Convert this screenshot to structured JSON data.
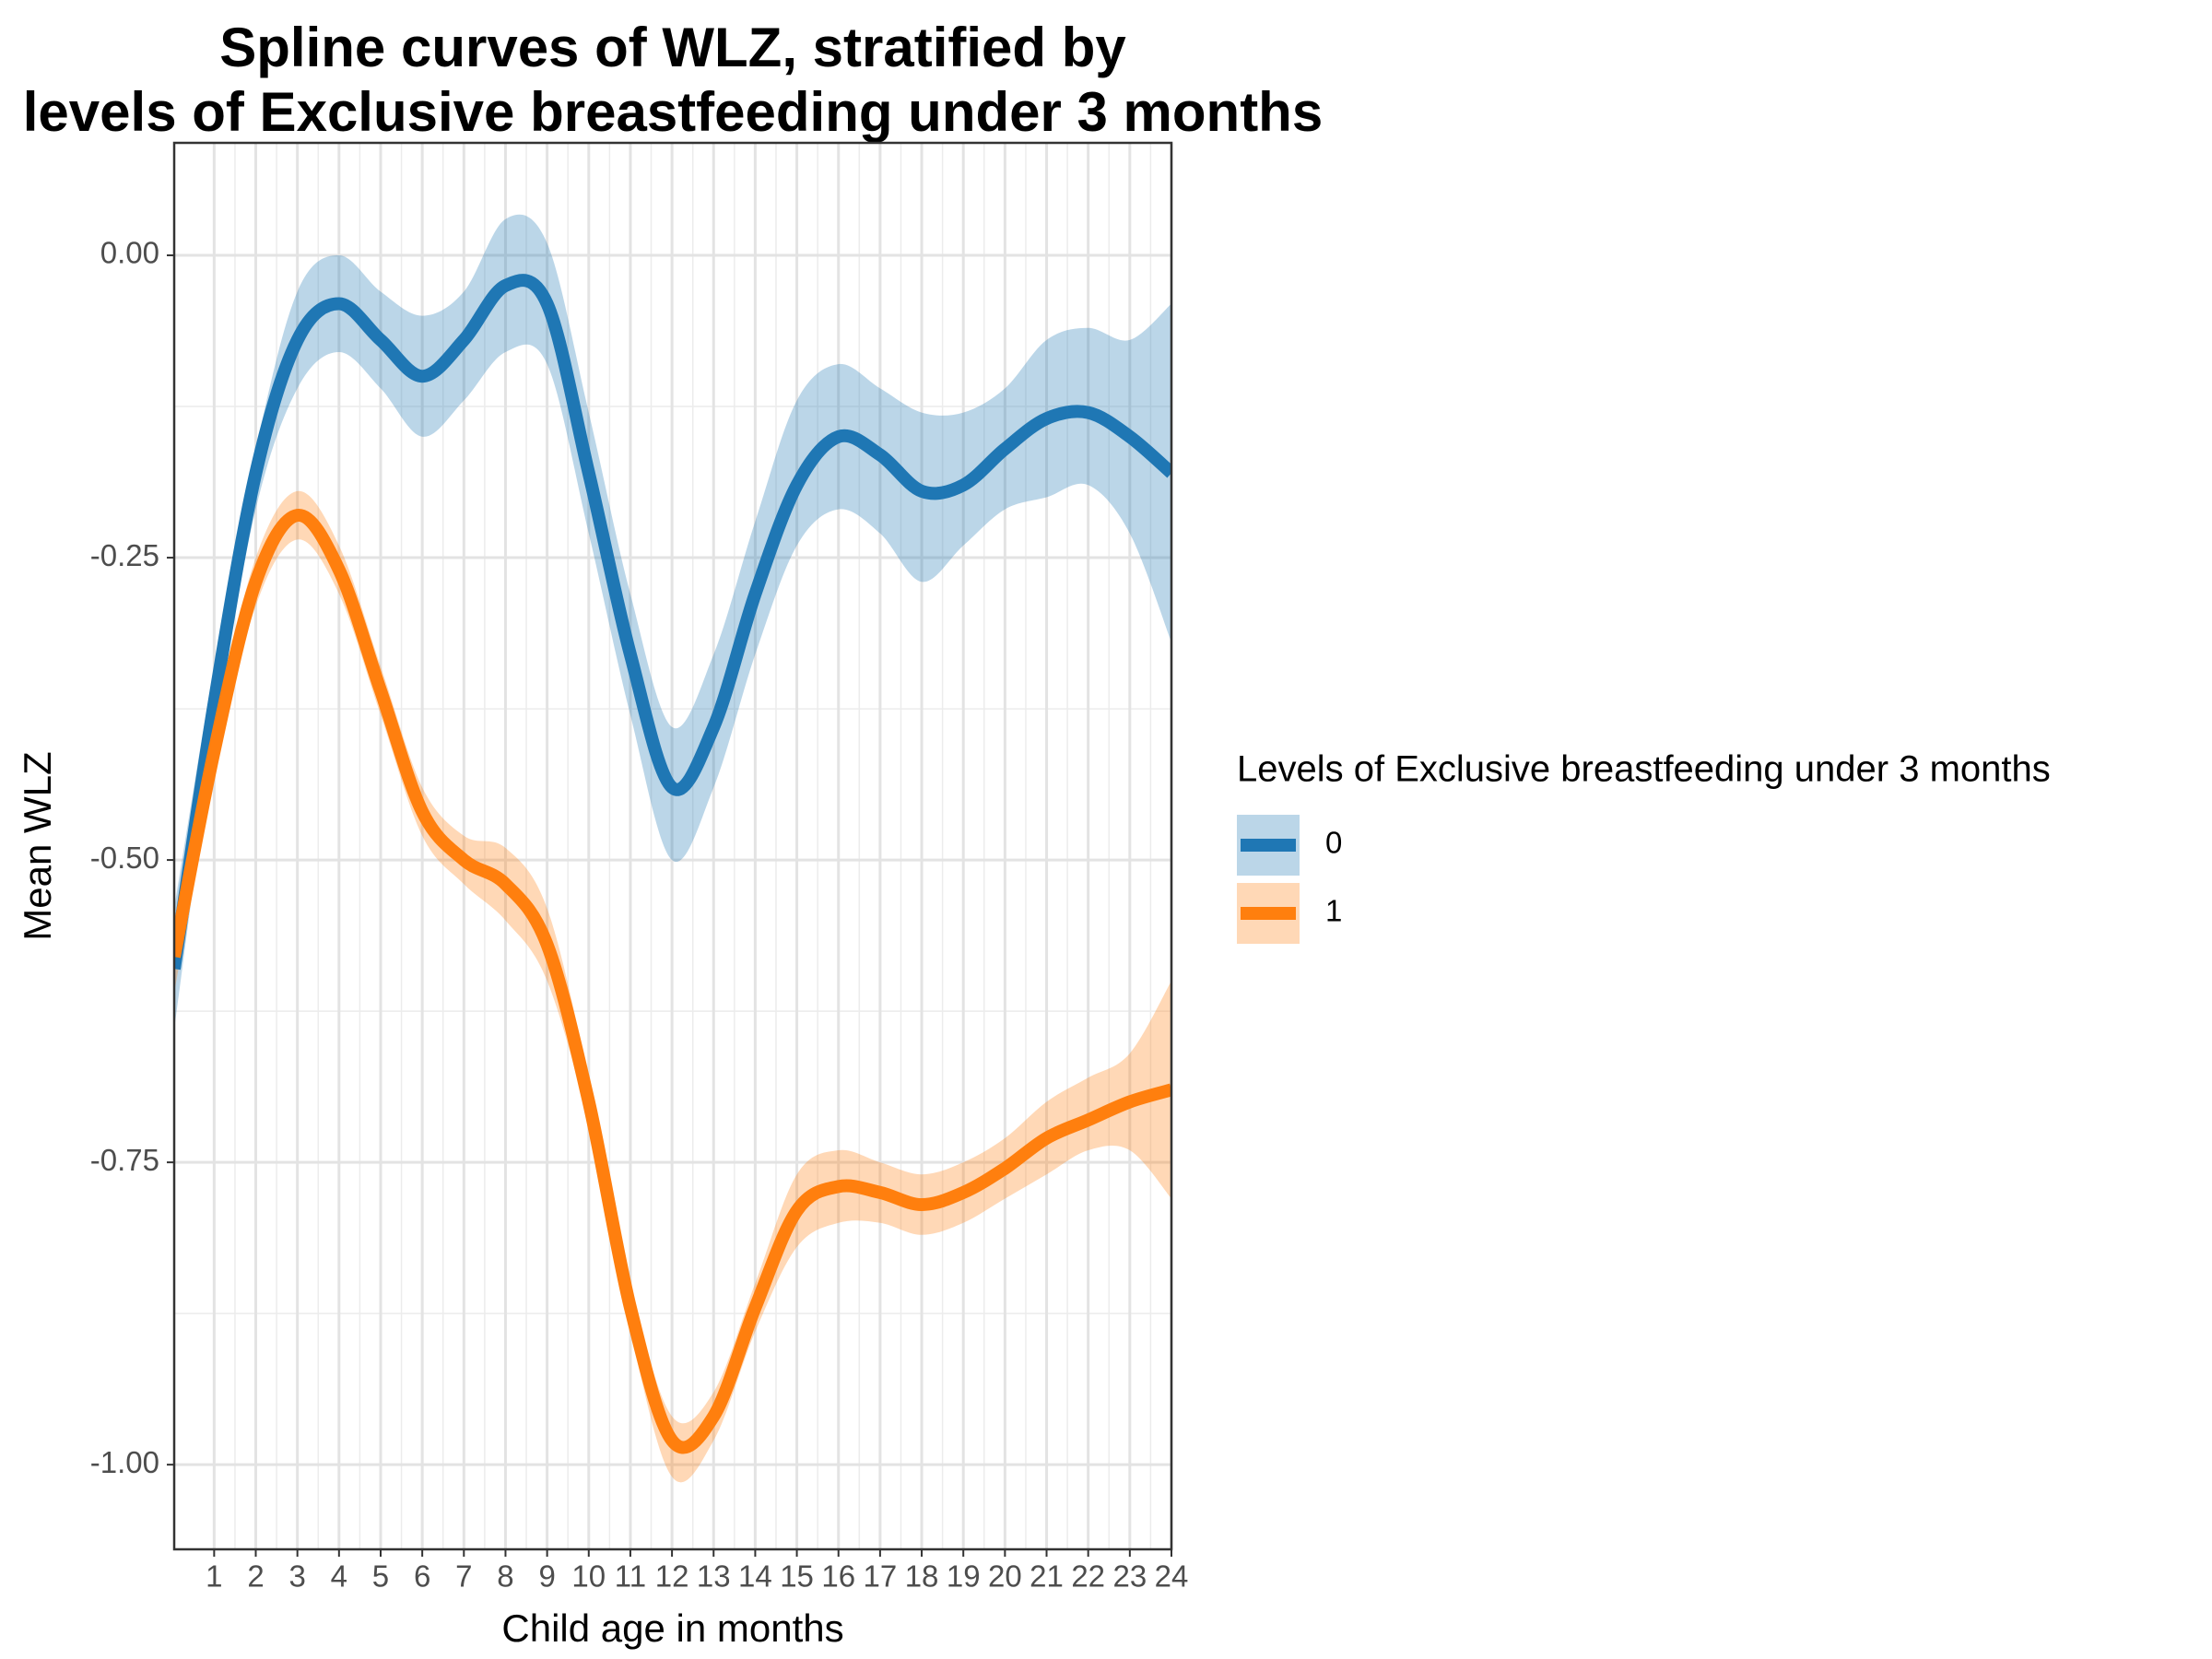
{
  "chart_data": {
    "type": "line",
    "title": [
      "Spline curves of WLZ, stratified by",
      "levels of Exclusive breastfeeding under 3 months"
    ],
    "x_label": "Child age in months",
    "y_label": "Mean WLZ",
    "legend_title": "Levels of Exclusive breastfeeding under 3 months",
    "x": [
      0.04,
      1,
      2,
      3,
      4,
      5,
      6,
      7,
      8,
      9,
      10,
      11,
      12,
      13,
      14,
      15,
      16,
      17,
      18,
      19,
      20,
      21,
      22,
      23,
      24
    ],
    "series": [
      {
        "name": "0",
        "color": "#1f77b4",
        "values": [
          -0.59,
          -0.37,
          -0.18,
          -0.07,
          -0.04,
          -0.07,
          -0.1,
          -0.07,
          -0.025,
          -0.04,
          -0.18,
          -0.33,
          -0.44,
          -0.39,
          -0.28,
          -0.19,
          -0.15,
          -0.165,
          -0.195,
          -0.19,
          -0.16,
          -0.135,
          -0.13,
          -0.15,
          -0.18
        ],
        "lower": [
          -0.64,
          -0.4,
          -0.21,
          -0.11,
          -0.08,
          -0.11,
          -0.15,
          -0.12,
          -0.08,
          -0.09,
          -0.23,
          -0.38,
          -0.5,
          -0.44,
          -0.33,
          -0.24,
          -0.21,
          -0.23,
          -0.27,
          -0.24,
          -0.21,
          -0.2,
          -0.19,
          -0.23,
          -0.32
        ],
        "upper": [
          -0.54,
          -0.34,
          -0.16,
          -0.03,
          0.0,
          -0.03,
          -0.05,
          -0.03,
          0.03,
          0.01,
          -0.13,
          -0.28,
          -0.39,
          -0.33,
          -0.22,
          -0.12,
          -0.09,
          -0.11,
          -0.13,
          -0.13,
          -0.11,
          -0.07,
          -0.06,
          -0.07,
          -0.04
        ]
      },
      {
        "name": "1",
        "color": "#ff7f0e",
        "values": [
          -0.58,
          -0.41,
          -0.27,
          -0.215,
          -0.26,
          -0.36,
          -0.46,
          -0.5,
          -0.52,
          -0.57,
          -0.7,
          -0.87,
          -0.98,
          -0.96,
          -0.87,
          -0.79,
          -0.77,
          -0.775,
          -0.785,
          -0.775,
          -0.755,
          -0.73,
          -0.715,
          -0.7,
          -0.69
        ],
        "lower": [
          -0.61,
          -0.43,
          -0.29,
          -0.235,
          -0.28,
          -0.38,
          -0.48,
          -0.52,
          -0.55,
          -0.6,
          -0.72,
          -0.89,
          -1.01,
          -0.98,
          -0.89,
          -0.82,
          -0.8,
          -0.8,
          -0.81,
          -0.8,
          -0.78,
          -0.76,
          -0.74,
          -0.74,
          -0.78
        ],
        "upper": [
          -0.55,
          -0.39,
          -0.25,
          -0.195,
          -0.24,
          -0.34,
          -0.44,
          -0.48,
          -0.49,
          -0.54,
          -0.68,
          -0.85,
          -0.96,
          -0.94,
          -0.85,
          -0.76,
          -0.74,
          -0.75,
          -0.76,
          -0.75,
          -0.73,
          -0.7,
          -0.68,
          -0.66,
          -0.6
        ]
      }
    ],
    "xlim": [
      0.04,
      24
    ],
    "xticks": [
      1,
      2,
      3,
      4,
      5,
      6,
      7,
      8,
      9,
      10,
      11,
      12,
      13,
      14,
      15,
      16,
      17,
      18,
      19,
      20,
      21,
      22,
      23,
      24
    ],
    "ylim": [
      -1.07,
      0.093
    ],
    "yticks": [
      {
        "value": -1,
        "label": "-1.00"
      },
      -0.75,
      {
        "value": -0.5,
        "label": "-0.50"
      },
      -0.25,
      {
        "value": 0,
        "label": "0.00"
      }
    ],
    "grid": true,
    "legend": "right"
  }
}
